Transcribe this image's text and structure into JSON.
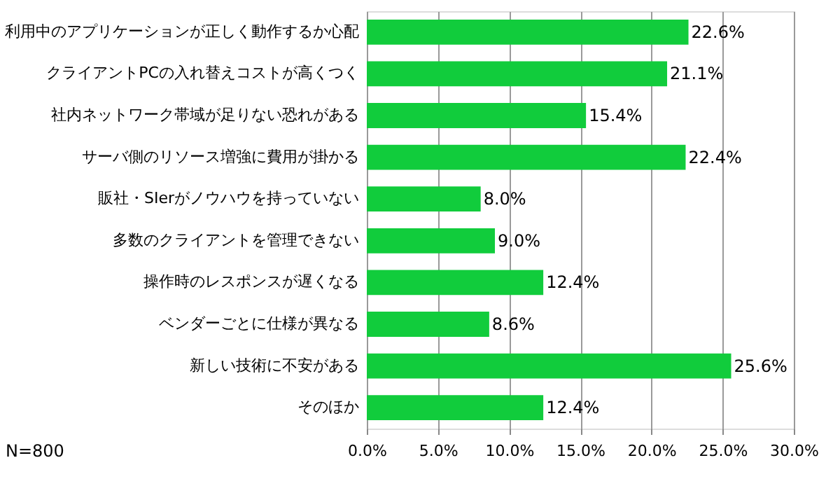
{
  "chart_data": {
    "type": "bar",
    "orientation": "horizontal",
    "categories": [
      "利用中のアプリケーションが正しく動作するか心配",
      "クライアントPCの入れ替えコストが高くつく",
      "社内ネットワーク帯域が足りない恐れがある",
      "サーバ側のリソース増強に費用が掛かる",
      "販社・SIerがノウハウを持っていない",
      "多数のクライアントを管理できない",
      "操作時のレスポンスが遅くなる",
      "ベンダーごとに仕様が異なる",
      "新しい技術に不安がある",
      "そのほか"
    ],
    "values": [
      22.6,
      21.1,
      15.4,
      22.4,
      8.0,
      9.0,
      12.4,
      8.6,
      25.6,
      12.4
    ],
    "value_labels": [
      "22.6%",
      "21.1%",
      "15.4%",
      "22.4%",
      "8.0%",
      "9.0%",
      "12.4%",
      "8.6%",
      "25.6%",
      "12.4%"
    ],
    "color": "#11cc3c",
    "xlim": [
      0,
      30
    ],
    "xticks": [
      {
        "value": 0,
        "label": "0.0%"
      },
      {
        "value": 5,
        "label": "5.0%"
      },
      {
        "value": 10,
        "label": "10.0%"
      },
      {
        "value": 15,
        "label": "15.0%"
      },
      {
        "value": 20,
        "label": "20.0%"
      },
      {
        "value": 25,
        "label": "25.0%"
      },
      {
        "value": 30,
        "label": "30.0%"
      }
    ],
    "grid": "x",
    "annotations": [
      "N=800"
    ]
  }
}
